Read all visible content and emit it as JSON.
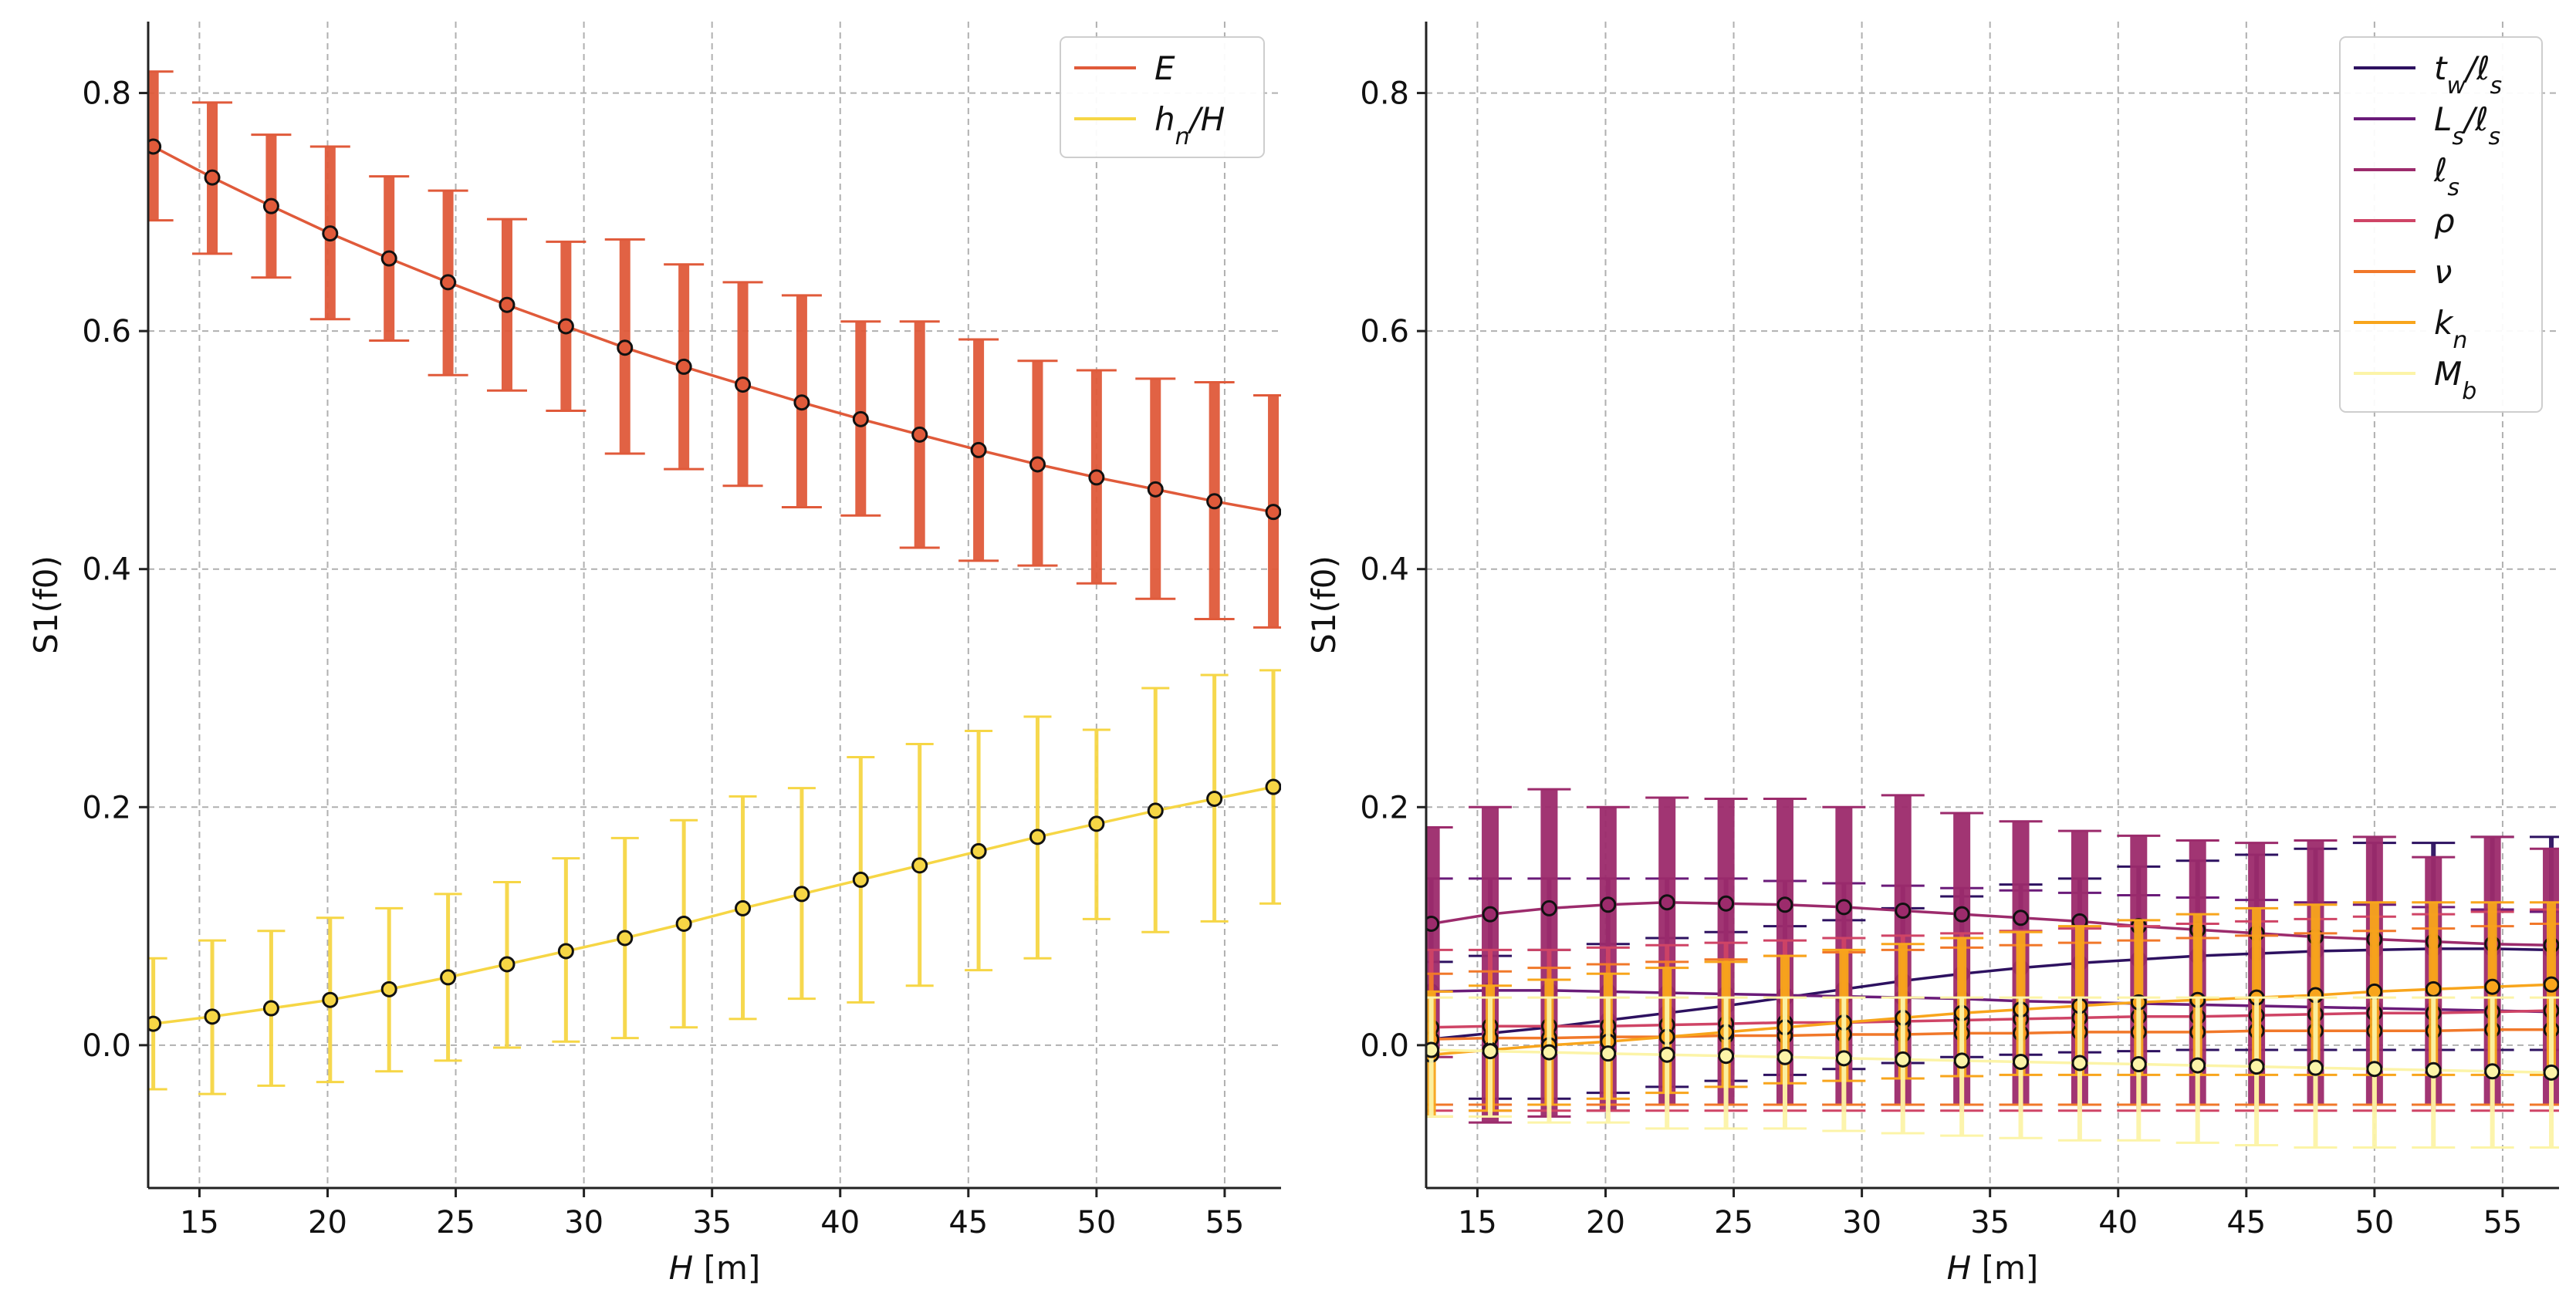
{
  "chart_data": [
    {
      "type": "line",
      "title": "",
      "xlabel": "H [m]",
      "ylabel": "S1(f0)",
      "xlim": [
        13,
        57.2
      ],
      "ylim": [
        -0.12,
        0.86
      ],
      "xticks": [
        15,
        20,
        25,
        30,
        35,
        40,
        45,
        50,
        55
      ],
      "yticks": [
        0.0,
        0.2,
        0.4,
        0.6,
        0.8
      ],
      "grid": true,
      "legend": "top-right",
      "x": [
        13.2,
        15.5,
        17.8,
        20.1,
        22.4,
        24.7,
        27.0,
        29.3,
        31.6,
        33.9,
        36.2,
        38.5,
        40.8,
        43.1,
        45.4,
        47.7,
        50.0,
        52.3,
        54.6,
        56.9
      ],
      "series": [
        {
          "name": "E",
          "color": "#e05a3a",
          "values": [
            0.755,
            0.729,
            0.705,
            0.682,
            0.661,
            0.641,
            0.622,
            0.604,
            0.586,
            0.57,
            0.555,
            0.54,
            0.526,
            0.513,
            0.5,
            0.488,
            0.477,
            0.467,
            0.457,
            0.448
          ],
          "err_low": [
            0.693,
            0.665,
            0.645,
            0.61,
            0.592,
            0.563,
            0.55,
            0.533,
            0.497,
            0.484,
            0.47,
            0.452,
            0.445,
            0.418,
            0.407,
            0.403,
            0.388,
            0.375,
            0.358,
            0.351
          ],
          "err_high": [
            0.818,
            0.792,
            0.765,
            0.755,
            0.73,
            0.718,
            0.694,
            0.675,
            0.677,
            0.656,
            0.641,
            0.63,
            0.608,
            0.608,
            0.593,
            0.575,
            0.567,
            0.56,
            0.557,
            0.546
          ]
        },
        {
          "name": "h_n/H",
          "color": "#f6d645",
          "values": [
            0.018,
            0.024,
            0.031,
            0.038,
            0.047,
            0.057,
            0.068,
            0.079,
            0.09,
            0.102,
            0.115,
            0.127,
            0.139,
            0.151,
            0.163,
            0.175,
            0.186,
            0.197,
            0.207,
            0.217
          ],
          "err_low": [
            -0.037,
            -0.041,
            -0.034,
            -0.031,
            -0.022,
            -0.013,
            -0.002,
            0.003,
            0.006,
            0.015,
            0.022,
            0.039,
            0.036,
            0.05,
            0.063,
            0.073,
            0.106,
            0.095,
            0.104,
            0.119
          ],
          "err_high": [
            0.073,
            0.088,
            0.096,
            0.107,
            0.115,
            0.127,
            0.137,
            0.157,
            0.174,
            0.189,
            0.209,
            0.216,
            0.242,
            0.253,
            0.264,
            0.276,
            0.265,
            0.3,
            0.311,
            0.315
          ]
        }
      ]
    },
    {
      "type": "line",
      "title": "",
      "xlabel": "H [m]",
      "ylabel": "S1(f0)",
      "xlim": [
        13,
        57.2
      ],
      "ylim": [
        -0.12,
        0.86
      ],
      "xticks": [
        15,
        20,
        25,
        30,
        35,
        40,
        45,
        50,
        55
      ],
      "yticks": [
        0.0,
        0.2,
        0.4,
        0.6,
        0.8
      ],
      "grid": true,
      "legend": "top-right",
      "x": [
        13.2,
        15.5,
        17.8,
        20.1,
        22.4,
        24.7,
        27.0,
        29.3,
        31.6,
        33.9,
        36.2,
        38.5,
        40.8,
        43.1,
        45.4,
        47.7,
        50.0,
        52.3,
        54.6,
        56.9
      ],
      "series": [
        {
          "name": "t_w/ℓ_s",
          "color": "#2d1160",
          "values": [
            0.005,
            0.01,
            0.015,
            0.021,
            0.027,
            0.033,
            0.04,
            0.047,
            0.054,
            0.06,
            0.065,
            0.069,
            0.072,
            0.075,
            0.077,
            0.079,
            0.08,
            0.081,
            0.081,
            0.08
          ],
          "err_low": [
            -0.05,
            -0.045,
            -0.045,
            -0.04,
            -0.035,
            -0.03,
            -0.025,
            -0.02,
            -0.015,
            -0.01,
            -0.008,
            -0.006,
            -0.005,
            -0.004,
            -0.004,
            -0.004,
            -0.004,
            -0.004,
            -0.004,
            -0.004
          ],
          "err_high": [
            0.07,
            0.075,
            0.08,
            0.085,
            0.09,
            0.095,
            0.1,
            0.105,
            0.115,
            0.125,
            0.135,
            0.14,
            0.15,
            0.155,
            0.16,
            0.165,
            0.17,
            0.17,
            0.175,
            0.175
          ]
        },
        {
          "name": "L_s/ℓ_s",
          "color": "#6a1b79",
          "values": [
            0.045,
            0.046,
            0.046,
            0.045,
            0.044,
            0.043,
            0.042,
            0.041,
            0.04,
            0.039,
            0.037,
            0.036,
            0.035,
            0.034,
            0.033,
            0.032,
            0.031,
            0.03,
            0.029,
            0.028
          ],
          "err_low": [
            -0.05,
            -0.05,
            -0.05,
            -0.05,
            -0.05,
            -0.05,
            -0.05,
            -0.05,
            -0.05,
            -0.05,
            -0.05,
            -0.05,
            -0.05,
            -0.05,
            -0.05,
            -0.05,
            -0.05,
            -0.05,
            -0.05,
            -0.05
          ],
          "err_high": [
            0.14,
            0.14,
            0.14,
            0.14,
            0.14,
            0.14,
            0.138,
            0.136,
            0.134,
            0.132,
            0.13,
            0.128,
            0.126,
            0.124,
            0.122,
            0.12,
            0.118,
            0.116,
            0.114,
            0.112
          ]
        },
        {
          "name": "ℓ_s",
          "color": "#9c2b6c",
          "values": [
            0.102,
            0.11,
            0.115,
            0.118,
            0.12,
            0.119,
            0.118,
            0.116,
            0.113,
            0.11,
            0.107,
            0.104,
            0.1,
            0.097,
            0.094,
            0.091,
            0.089,
            0.087,
            0.085,
            0.084
          ],
          "err_low": [
            -0.01,
            -0.065,
            -0.06,
            -0.055,
            -0.05,
            -0.05,
            -0.05,
            -0.05,
            -0.05,
            -0.05,
            -0.05,
            -0.05,
            -0.05,
            -0.05,
            -0.05,
            -0.05,
            -0.05,
            -0.05,
            -0.05,
            -0.05
          ],
          "err_high": [
            0.183,
            0.2,
            0.215,
            0.2,
            0.208,
            0.207,
            0.207,
            0.2,
            0.21,
            0.195,
            0.188,
            0.18,
            0.176,
            0.172,
            0.17,
            0.172,
            0.175,
            0.158,
            0.175,
            0.165
          ]
        },
        {
          "name": "ρ",
          "color": "#cf4466",
          "values": [
            0.015,
            0.016,
            0.016,
            0.016,
            0.017,
            0.018,
            0.019,
            0.019,
            0.02,
            0.021,
            0.022,
            0.023,
            0.024,
            0.024,
            0.025,
            0.026,
            0.027,
            0.027,
            0.028,
            0.029
          ],
          "err_low": [
            -0.055,
            -0.055,
            -0.055,
            -0.055,
            -0.055,
            -0.055,
            -0.055,
            -0.055,
            -0.055,
            -0.055,
            -0.055,
            -0.055,
            -0.055,
            -0.055,
            -0.055,
            -0.055,
            -0.055,
            -0.055,
            -0.055,
            -0.055
          ],
          "err_high": [
            0.08,
            0.08,
            0.08,
            0.082,
            0.084,
            0.086,
            0.088,
            0.09,
            0.092,
            0.094,
            0.096,
            0.098,
            0.1,
            0.102,
            0.104,
            0.106,
            0.108,
            0.11,
            0.112,
            0.114
          ]
        },
        {
          "name": "ν",
          "color": "#f1782a",
          "values": [
            0.005,
            0.006,
            0.006,
            0.007,
            0.007,
            0.008,
            0.008,
            0.009,
            0.009,
            0.01,
            0.01,
            0.011,
            0.011,
            0.011,
            0.012,
            0.012,
            0.012,
            0.012,
            0.013,
            0.013
          ],
          "err_low": [
            -0.05,
            -0.05,
            -0.05,
            -0.05,
            -0.05,
            -0.05,
            -0.05,
            -0.05,
            -0.05,
            -0.05,
            -0.05,
            -0.05,
            -0.05,
            -0.05,
            -0.05,
            -0.05,
            -0.05,
            -0.05,
            -0.05,
            -0.05
          ],
          "err_high": [
            0.06,
            0.062,
            0.065,
            0.068,
            0.07,
            0.072,
            0.075,
            0.078,
            0.08,
            0.082,
            0.084,
            0.086,
            0.088,
            0.09,
            0.092,
            0.094,
            0.096,
            0.098,
            0.1,
            0.102
          ]
        },
        {
          "name": "k_n",
          "color": "#f8a51c",
          "values": [
            -0.008,
            -0.004,
            0.0,
            0.003,
            0.007,
            0.011,
            0.015,
            0.019,
            0.023,
            0.027,
            0.03,
            0.033,
            0.036,
            0.038,
            0.04,
            0.042,
            0.045,
            0.047,
            0.049,
            0.051
          ],
          "err_low": [
            -0.06,
            -0.055,
            -0.05,
            -0.045,
            -0.04,
            -0.035,
            -0.032,
            -0.03,
            -0.028,
            -0.026,
            -0.025,
            -0.025,
            -0.025,
            -0.025,
            -0.025,
            -0.025,
            -0.025,
            -0.025,
            -0.025,
            -0.025
          ],
          "err_high": [
            0.045,
            0.05,
            0.055,
            0.06,
            0.065,
            0.07,
            0.075,
            0.08,
            0.085,
            0.09,
            0.095,
            0.1,
            0.105,
            0.11,
            0.115,
            0.118,
            0.12,
            0.12,
            0.12,
            0.12
          ]
        },
        {
          "name": "M_b",
          "color": "#fcf4a8",
          "values": [
            -0.004,
            -0.005,
            -0.006,
            -0.007,
            -0.008,
            -0.009,
            -0.01,
            -0.011,
            -0.012,
            -0.013,
            -0.014,
            -0.015,
            -0.016,
            -0.017,
            -0.018,
            -0.019,
            -0.02,
            -0.021,
            -0.022,
            -0.023
          ],
          "err_low": [
            -0.06,
            -0.06,
            -0.065,
            -0.065,
            -0.07,
            -0.07,
            -0.07,
            -0.072,
            -0.074,
            -0.076,
            -0.078,
            -0.08,
            -0.08,
            -0.082,
            -0.084,
            -0.086,
            -0.086,
            -0.086,
            -0.086,
            -0.086
          ],
          "err_high": [
            0.04,
            0.04,
            0.04,
            0.04,
            0.04,
            0.04,
            0.04,
            0.04,
            0.04,
            0.04,
            0.04,
            0.04,
            0.04,
            0.04,
            0.04,
            0.04,
            0.04,
            0.04,
            0.04,
            0.04
          ]
        }
      ]
    }
  ]
}
